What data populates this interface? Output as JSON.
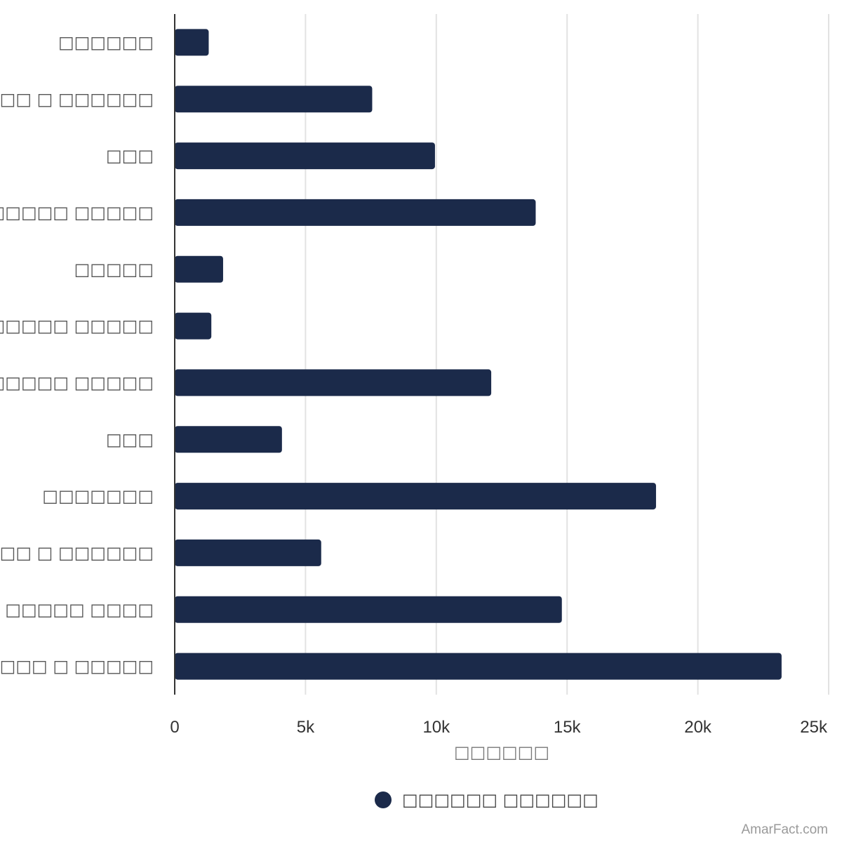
{
  "chart_data": {
    "type": "bar",
    "orientation": "horizontal",
    "categories": [
      "□□□□□□",
      "□□□□□□ □ □□□□□□",
      "□□□",
      "□□□□□□□□ □□□□□",
      "□□□□□",
      "□ □ □□□□□□ □□□□□",
      "□□□□□ □□□□□",
      "□□□",
      "□□□□□□□",
      "□□□□□□ □ □□□□□□",
      "□□□□□ □□□□",
      "□□□□□□□□ □ □□□□□"
    ],
    "series": [
      {
        "name": "□□□□□□ □□□□□□",
        "values": [
          1300,
          7550,
          9950,
          13800,
          1850,
          1400,
          12100,
          4100,
          18400,
          5600,
          14800,
          23200
        ]
      }
    ],
    "xlim": [
      0,
      25000
    ],
    "xticks": [
      0,
      5000,
      10000,
      15000,
      20000,
      25000
    ],
    "xtick_labels": [
      "0",
      "5k",
      "10k",
      "15k",
      "20k",
      "25k"
    ],
    "xlabel": "□□□□□□",
    "ylabel": "",
    "grid": true,
    "legend_position": "bottom-center",
    "bar_color": "#1b2a4a",
    "grid_color": "#e2e2e2",
    "axis_color": "#333333"
  },
  "watermark": "AmarFact.com"
}
